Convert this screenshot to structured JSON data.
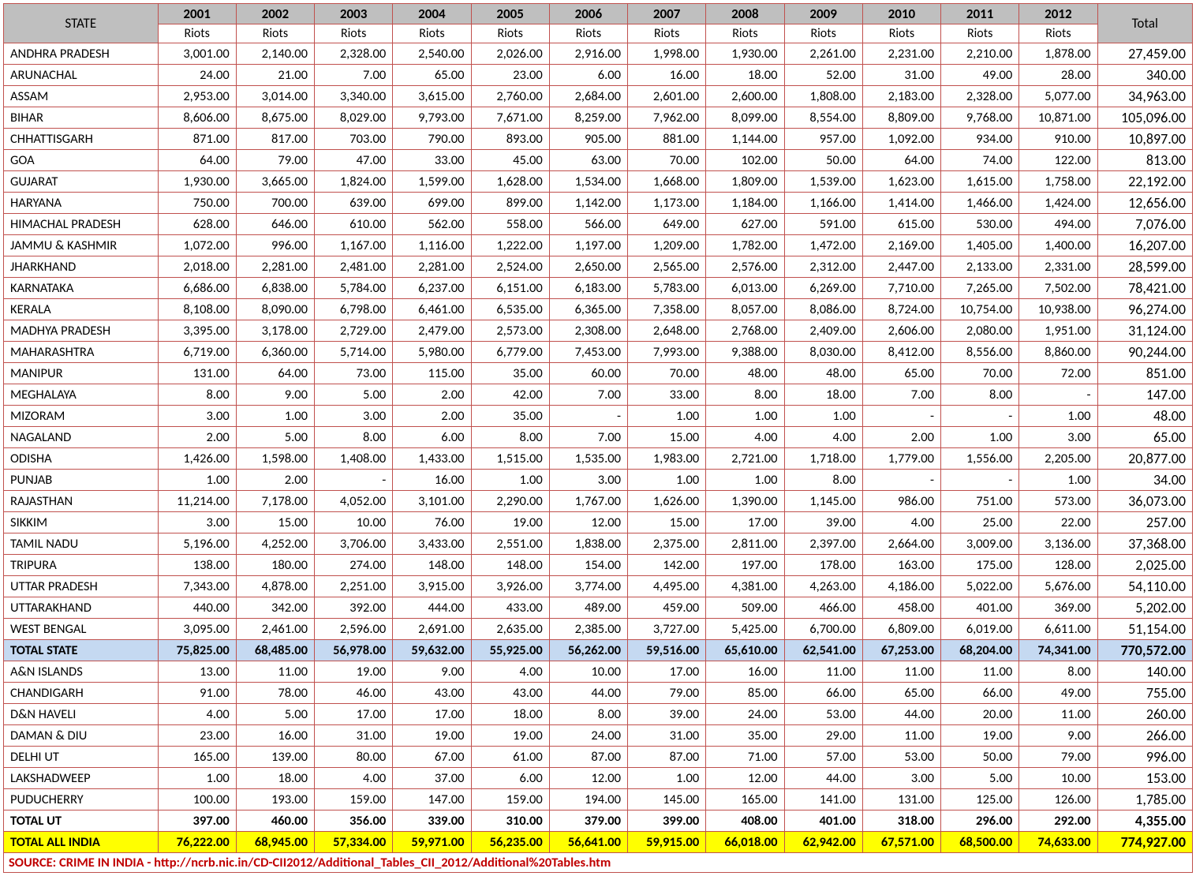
{
  "headers": {
    "state": "STATE",
    "years": [
      "2001",
      "2002",
      "2003",
      "2004",
      "2005",
      "2006",
      "2007",
      "2008",
      "2009",
      "2010",
      "2011",
      "2012"
    ],
    "sub": "Riots",
    "total": "Total"
  },
  "states": [
    {
      "name": "ANDHRA PRADESH",
      "v": [
        "3,001.00",
        "2,140.00",
        "2,328.00",
        "2,540.00",
        "2,026.00",
        "2,916.00",
        "1,998.00",
        "1,930.00",
        "2,261.00",
        "2,231.00",
        "2,210.00",
        "1,878.00"
      ],
      "t": "27,459.00"
    },
    {
      "name": "ARUNACHAL",
      "v": [
        "24.00",
        "21.00",
        "7.00",
        "65.00",
        "23.00",
        "6.00",
        "16.00",
        "18.00",
        "52.00",
        "31.00",
        "49.00",
        "28.00"
      ],
      "t": "340.00"
    },
    {
      "name": "ASSAM",
      "v": [
        "2,953.00",
        "3,014.00",
        "3,340.00",
        "3,615.00",
        "2,760.00",
        "2,684.00",
        "2,601.00",
        "2,600.00",
        "1,808.00",
        "2,183.00",
        "2,328.00",
        "5,077.00"
      ],
      "t": "34,963.00"
    },
    {
      "name": "BIHAR",
      "v": [
        "8,606.00",
        "8,675.00",
        "8,029.00",
        "9,793.00",
        "7,671.00",
        "8,259.00",
        "7,962.00",
        "8,099.00",
        "8,554.00",
        "8,809.00",
        "9,768.00",
        "10,871.00"
      ],
      "t": "105,096.00"
    },
    {
      "name": "CHHATTISGARH",
      "v": [
        "871.00",
        "817.00",
        "703.00",
        "790.00",
        "893.00",
        "905.00",
        "881.00",
        "1,144.00",
        "957.00",
        "1,092.00",
        "934.00",
        "910.00"
      ],
      "t": "10,897.00"
    },
    {
      "name": "GOA",
      "v": [
        "64.00",
        "79.00",
        "47.00",
        "33.00",
        "45.00",
        "63.00",
        "70.00",
        "102.00",
        "50.00",
        "64.00",
        "74.00",
        "122.00"
      ],
      "t": "813.00"
    },
    {
      "name": "GUJARAT",
      "v": [
        "1,930.00",
        "3,665.00",
        "1,824.00",
        "1,599.00",
        "1,628.00",
        "1,534.00",
        "1,668.00",
        "1,809.00",
        "1,539.00",
        "1,623.00",
        "1,615.00",
        "1,758.00"
      ],
      "t": "22,192.00"
    },
    {
      "name": "HARYANA",
      "v": [
        "750.00",
        "700.00",
        "639.00",
        "699.00",
        "899.00",
        "1,142.00",
        "1,173.00",
        "1,184.00",
        "1,166.00",
        "1,414.00",
        "1,466.00",
        "1,424.00"
      ],
      "t": "12,656.00"
    },
    {
      "name": "HIMACHAL PRADESH",
      "v": [
        "628.00",
        "646.00",
        "610.00",
        "562.00",
        "558.00",
        "566.00",
        "649.00",
        "627.00",
        "591.00",
        "615.00",
        "530.00",
        "494.00"
      ],
      "t": "7,076.00"
    },
    {
      "name": "JAMMU & KASHMIR",
      "v": [
        "1,072.00",
        "996.00",
        "1,167.00",
        "1,116.00",
        "1,222.00",
        "1,197.00",
        "1,209.00",
        "1,782.00",
        "1,472.00",
        "2,169.00",
        "1,405.00",
        "1,400.00"
      ],
      "t": "16,207.00"
    },
    {
      "name": "JHARKHAND",
      "v": [
        "2,018.00",
        "2,281.00",
        "2,481.00",
        "2,281.00",
        "2,524.00",
        "2,650.00",
        "2,565.00",
        "2,576.00",
        "2,312.00",
        "2,447.00",
        "2,133.00",
        "2,331.00"
      ],
      "t": "28,599.00"
    },
    {
      "name": "KARNATAKA",
      "v": [
        "6,686.00",
        "6,838.00",
        "5,784.00",
        "6,237.00",
        "6,151.00",
        "6,183.00",
        "5,783.00",
        "6,013.00",
        "6,269.00",
        "7,710.00",
        "7,265.00",
        "7,502.00"
      ],
      "t": "78,421.00"
    },
    {
      "name": "KERALA",
      "v": [
        "8,108.00",
        "8,090.00",
        "6,798.00",
        "6,461.00",
        "6,535.00",
        "6,365.00",
        "7,358.00",
        "8,057.00",
        "8,086.00",
        "8,724.00",
        "10,754.00",
        "10,938.00"
      ],
      "t": "96,274.00"
    },
    {
      "name": "MADHYA PRADESH",
      "v": [
        "3,395.00",
        "3,178.00",
        "2,729.00",
        "2,479.00",
        "2,573.00",
        "2,308.00",
        "2,648.00",
        "2,768.00",
        "2,409.00",
        "2,606.00",
        "2,080.00",
        "1,951.00"
      ],
      "t": "31,124.00"
    },
    {
      "name": "MAHARASHTRA",
      "v": [
        "6,719.00",
        "6,360.00",
        "5,714.00",
        "5,980.00",
        "6,779.00",
        "7,453.00",
        "7,993.00",
        "9,388.00",
        "8,030.00",
        "8,412.00",
        "8,556.00",
        "8,860.00"
      ],
      "t": "90,244.00"
    },
    {
      "name": "MANIPUR",
      "v": [
        "131.00",
        "64.00",
        "73.00",
        "115.00",
        "35.00",
        "60.00",
        "70.00",
        "48.00",
        "48.00",
        "65.00",
        "70.00",
        "72.00"
      ],
      "t": "851.00"
    },
    {
      "name": "MEGHALAYA",
      "v": [
        "8.00",
        "9.00",
        "5.00",
        "2.00",
        "42.00",
        "7.00",
        "33.00",
        "8.00",
        "18.00",
        "7.00",
        "8.00",
        "-"
      ],
      "t": "147.00"
    },
    {
      "name": "MIZORAM",
      "v": [
        "3.00",
        "1.00",
        "3.00",
        "2.00",
        "35.00",
        "-",
        "1.00",
        "1.00",
        "1.00",
        "-",
        "-",
        "1.00"
      ],
      "t": "48.00"
    },
    {
      "name": "NAGALAND",
      "v": [
        "2.00",
        "5.00",
        "8.00",
        "6.00",
        "8.00",
        "7.00",
        "15.00",
        "4.00",
        "4.00",
        "2.00",
        "1.00",
        "3.00"
      ],
      "t": "65.00"
    },
    {
      "name": "ODISHA",
      "v": [
        "1,426.00",
        "1,598.00",
        "1,408.00",
        "1,433.00",
        "1,515.00",
        "1,535.00",
        "1,983.00",
        "2,721.00",
        "1,718.00",
        "1,779.00",
        "1,556.00",
        "2,205.00"
      ],
      "t": "20,877.00"
    },
    {
      "name": "PUNJAB",
      "v": [
        "1.00",
        "2.00",
        "-",
        "16.00",
        "1.00",
        "3.00",
        "1.00",
        "1.00",
        "8.00",
        "-",
        "-",
        "1.00"
      ],
      "t": "34.00"
    },
    {
      "name": "RAJASTHAN",
      "v": [
        "11,214.00",
        "7,178.00",
        "4,052.00",
        "3,101.00",
        "2,290.00",
        "1,767.00",
        "1,626.00",
        "1,390.00",
        "1,145.00",
        "986.00",
        "751.00",
        "573.00"
      ],
      "t": "36,073.00"
    },
    {
      "name": "SIKKIM",
      "v": [
        "3.00",
        "15.00",
        "10.00",
        "76.00",
        "19.00",
        "12.00",
        "15.00",
        "17.00",
        "39.00",
        "4.00",
        "25.00",
        "22.00"
      ],
      "t": "257.00"
    },
    {
      "name": "TAMIL NADU",
      "v": [
        "5,196.00",
        "4,252.00",
        "3,706.00",
        "3,433.00",
        "2,551.00",
        "1,838.00",
        "2,375.00",
        "2,811.00",
        "2,397.00",
        "2,664.00",
        "3,009.00",
        "3,136.00"
      ],
      "t": "37,368.00"
    },
    {
      "name": "TRIPURA",
      "v": [
        "138.00",
        "180.00",
        "274.00",
        "148.00",
        "148.00",
        "154.00",
        "142.00",
        "197.00",
        "178.00",
        "163.00",
        "175.00",
        "128.00"
      ],
      "t": "2,025.00"
    },
    {
      "name": "UTTAR PRADESH",
      "v": [
        "7,343.00",
        "4,878.00",
        "2,251.00",
        "3,915.00",
        "3,926.00",
        "3,774.00",
        "4,495.00",
        "4,381.00",
        "4,263.00",
        "4,186.00",
        "5,022.00",
        "5,676.00"
      ],
      "t": "54,110.00"
    },
    {
      "name": "UTTARAKHAND",
      "v": [
        "440.00",
        "342.00",
        "392.00",
        "444.00",
        "433.00",
        "489.00",
        "459.00",
        "509.00",
        "466.00",
        "458.00",
        "401.00",
        "369.00"
      ],
      "t": "5,202.00"
    },
    {
      "name": "WEST BENGAL",
      "v": [
        "3,095.00",
        "2,461.00",
        "2,596.00",
        "2,691.00",
        "2,635.00",
        "2,385.00",
        "3,727.00",
        "5,425.00",
        "6,700.00",
        "6,809.00",
        "6,019.00",
        "6,611.00"
      ],
      "t": "51,154.00"
    }
  ],
  "totalState": {
    "name": "TOTAL STATE",
    "v": [
      "75,825.00",
      "68,485.00",
      "56,978.00",
      "59,632.00",
      "55,925.00",
      "56,262.00",
      "59,516.00",
      "65,610.00",
      "62,541.00",
      "67,253.00",
      "68,204.00",
      "74,341.00"
    ],
    "t": "770,572.00"
  },
  "uts": [
    {
      "name": "A&N ISLANDS",
      "v": [
        "13.00",
        "11.00",
        "19.00",
        "9.00",
        "4.00",
        "10.00",
        "17.00",
        "16.00",
        "11.00",
        "11.00",
        "11.00",
        "8.00"
      ],
      "t": "140.00"
    },
    {
      "name": "CHANDIGARH",
      "v": [
        "91.00",
        "78.00",
        "46.00",
        "43.00",
        "43.00",
        "44.00",
        "79.00",
        "85.00",
        "66.00",
        "65.00",
        "66.00",
        "49.00"
      ],
      "t": "755.00"
    },
    {
      "name": "D&N HAVELI",
      "v": [
        "4.00",
        "5.00",
        "17.00",
        "17.00",
        "18.00",
        "8.00",
        "39.00",
        "24.00",
        "53.00",
        "44.00",
        "20.00",
        "11.00"
      ],
      "t": "260.00"
    },
    {
      "name": "DAMAN & DIU",
      "v": [
        "23.00",
        "16.00",
        "31.00",
        "19.00",
        "19.00",
        "24.00",
        "31.00",
        "35.00",
        "29.00",
        "11.00",
        "19.00",
        "9.00"
      ],
      "t": "266.00"
    },
    {
      "name": "DELHI UT",
      "v": [
        "165.00",
        "139.00",
        "80.00",
        "67.00",
        "61.00",
        "87.00",
        "87.00",
        "71.00",
        "57.00",
        "53.00",
        "50.00",
        "79.00"
      ],
      "t": "996.00"
    },
    {
      "name": "LAKSHADWEEP",
      "v": [
        "1.00",
        "18.00",
        "4.00",
        "37.00",
        "6.00",
        "12.00",
        "1.00",
        "12.00",
        "44.00",
        "3.00",
        "5.00",
        "10.00"
      ],
      "t": "153.00"
    },
    {
      "name": "PUDUCHERRY",
      "v": [
        "100.00",
        "193.00",
        "159.00",
        "147.00",
        "159.00",
        "194.00",
        "145.00",
        "165.00",
        "141.00",
        "131.00",
        "125.00",
        "126.00"
      ],
      "t": "1,785.00"
    }
  ],
  "totalUT": {
    "name": "TOTAL UT",
    "v": [
      "397.00",
      "460.00",
      "356.00",
      "339.00",
      "310.00",
      "379.00",
      "399.00",
      "408.00",
      "401.00",
      "318.00",
      "296.00",
      "292.00"
    ],
    "t": "4,355.00"
  },
  "totalAllIndia": {
    "name": "TOTAL ALL INDIA",
    "v": [
      "76,222.00",
      "68,945.00",
      "57,334.00",
      "59,971.00",
      "56,235.00",
      "56,641.00",
      "59,915.00",
      "66,018.00",
      "62,942.00",
      "67,571.00",
      "68,500.00",
      "74,633.00"
    ],
    "t": "774,927.00"
  },
  "source": "SOURCE: CRIME IN INDIA - http://ncrb.nic.in/CD-CII2012/Additional_Tables_CII_2012/Additional%20Tables.htm"
}
